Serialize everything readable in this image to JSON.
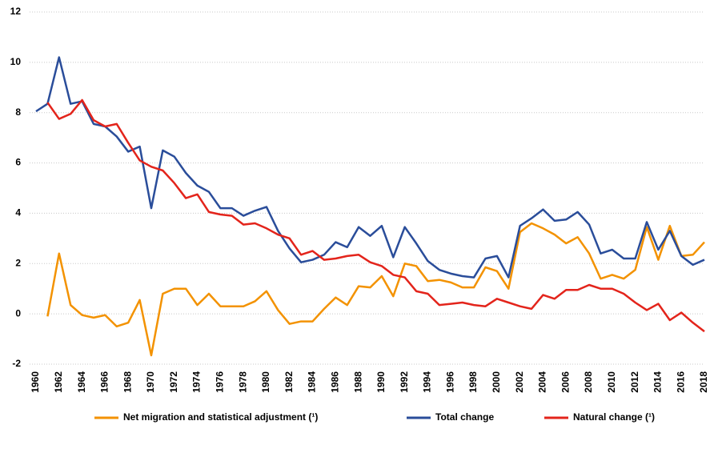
{
  "chart_data": {
    "type": "line",
    "x": [
      1960,
      1961,
      1962,
      1963,
      1964,
      1965,
      1966,
      1967,
      1968,
      1969,
      1970,
      1971,
      1972,
      1973,
      1974,
      1975,
      1976,
      1977,
      1978,
      1979,
      1980,
      1981,
      1982,
      1983,
      1984,
      1985,
      1986,
      1987,
      1988,
      1989,
      1990,
      1991,
      1992,
      1993,
      1994,
      1995,
      1996,
      1997,
      1998,
      1999,
      2000,
      2001,
      2002,
      2003,
      2004,
      2005,
      2006,
      2007,
      2008,
      2009,
      2010,
      2011,
      2012,
      2013,
      2014,
      2015,
      2016,
      2017,
      2018
    ],
    "xlim": [
      1960,
      2018
    ],
    "xticks": [
      1960,
      1962,
      1964,
      1966,
      1968,
      1970,
      1972,
      1974,
      1976,
      1978,
      1980,
      1982,
      1984,
      1986,
      1988,
      1990,
      1992,
      1994,
      1996,
      1998,
      2000,
      2002,
      2004,
      2006,
      2008,
      2010,
      2012,
      2014,
      2016,
      2018
    ],
    "ylim": [
      -2,
      12
    ],
    "yticks": [
      -2,
      0,
      2,
      4,
      6,
      8,
      10,
      12
    ],
    "grid": true,
    "legend": "bottom",
    "series": [
      {
        "name": "Net migration and statistical adjustment (¹)",
        "color": "#f39200",
        "values": [
          null,
          -0.1,
          2.4,
          0.35,
          -0.05,
          -0.15,
          -0.05,
          -0.5,
          -0.35,
          0.55,
          -1.65,
          0.8,
          1.0,
          1.0,
          0.35,
          0.8,
          0.3,
          0.3,
          0.3,
          0.5,
          0.9,
          0.15,
          -0.4,
          -0.3,
          -0.3,
          0.2,
          0.65,
          0.35,
          1.1,
          1.05,
          1.5,
          0.7,
          2.0,
          1.9,
          1.3,
          1.35,
          1.25,
          1.05,
          1.05,
          1.85,
          1.7,
          1.0,
          3.25,
          3.6,
          3.4,
          3.15,
          2.8,
          3.05,
          2.4,
          1.4,
          1.55,
          1.4,
          1.75,
          3.45,
          2.15,
          3.5,
          2.3,
          2.35,
          2.85
        ]
      },
      {
        "name": "Total change",
        "color": "#2a4d9a",
        "values": [
          8.05,
          8.35,
          10.2,
          8.35,
          8.45,
          7.55,
          7.45,
          7.05,
          6.45,
          6.65,
          4.2,
          6.5,
          6.25,
          5.6,
          5.1,
          4.85,
          4.2,
          4.2,
          3.9,
          4.1,
          4.25,
          3.3,
          2.6,
          2.05,
          2.15,
          2.35,
          2.85,
          2.65,
          3.45,
          3.1,
          3.5,
          2.25,
          3.45,
          2.8,
          2.1,
          1.75,
          1.6,
          1.5,
          1.45,
          2.2,
          2.3,
          1.45,
          3.5,
          3.8,
          4.15,
          3.7,
          3.75,
          4.05,
          3.55,
          2.4,
          2.55,
          2.2,
          2.2,
          3.65,
          2.55,
          3.3,
          2.3,
          1.95,
          2.15
        ]
      },
      {
        "name": "Natural change (¹)",
        "color": "#e3241b",
        "values": [
          null,
          8.4,
          7.75,
          7.95,
          8.5,
          7.7,
          7.45,
          7.55,
          6.8,
          6.1,
          5.85,
          5.7,
          5.2,
          4.6,
          4.75,
          4.05,
          3.95,
          3.9,
          3.55,
          3.6,
          3.4,
          3.15,
          3.0,
          2.35,
          2.5,
          2.15,
          2.2,
          2.3,
          2.35,
          2.05,
          1.9,
          1.55,
          1.45,
          0.9,
          0.8,
          0.35,
          0.4,
          0.45,
          0.35,
          0.3,
          0.6,
          0.45,
          0.3,
          0.2,
          0.75,
          0.6,
          0.95,
          0.95,
          1.15,
          1.0,
          1.0,
          0.8,
          0.45,
          0.15,
          0.4,
          -0.25,
          0.05,
          -0.35,
          -0.7
        ]
      }
    ]
  }
}
